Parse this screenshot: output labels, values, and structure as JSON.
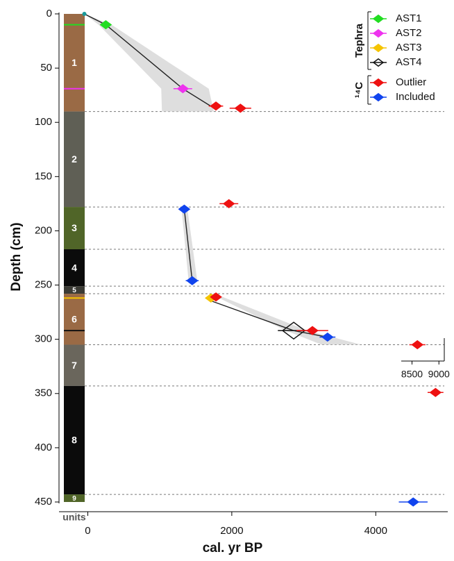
{
  "chart_data": {
    "type": "age-depth",
    "xlabel": "cal. yr BP",
    "ylabel": "Depth (cm)",
    "xlim": [
      -400,
      5000
    ],
    "ylim": [
      0,
      450
    ],
    "xticks": [
      0,
      2000,
      4000
    ],
    "yticks": [
      0,
      50,
      100,
      150,
      200,
      250,
      300,
      350,
      400,
      450
    ],
    "units": {
      "label": "units",
      "layers": [
        {
          "label": "1",
          "top": 0,
          "bottom": 90,
          "color": "#9a6a45"
        },
        {
          "label": "2",
          "top": 90,
          "bottom": 178,
          "color": "#5f5f55"
        },
        {
          "label": "3",
          "top": 178,
          "bottom": 217,
          "color": "#506528"
        },
        {
          "label": "4",
          "top": 217,
          "bottom": 251,
          "color": "#0b0b0b"
        },
        {
          "label": "5",
          "top": 251,
          "bottom": 258,
          "color": "#3b3b35"
        },
        {
          "label": "6",
          "top": 258,
          "bottom": 305,
          "color": "#9a6a45"
        },
        {
          "label": "7",
          "top": 305,
          "bottom": 343,
          "color": "#6a665c"
        },
        {
          "label": "8",
          "top": 343,
          "bottom": 443,
          "color": "#0b0b0b"
        },
        {
          "label": "9",
          "top": 443,
          "bottom": 450,
          "color": "#506528"
        }
      ]
    },
    "envelope": [
      {
        "depth": [
          0,
          10,
          69,
          90
        ],
        "lo": [
          -48,
          150,
          1020,
          1030
        ],
        "hi": [
          -48,
          330,
          1680,
          1750
        ]
      },
      {
        "depth": [
          178,
          246
        ],
        "lo": [
          1300,
          1400
        ],
        "hi": [
          1380,
          1520
        ]
      },
      {
        "depth": [
          258,
          292,
          305
        ],
        "lo": [
          1700,
          2750,
          3250
        ],
        "hi": [
          1760,
          3050,
          3800
        ]
      }
    ],
    "model": [
      {
        "x": [
          -48,
          250,
          1320,
          1780
        ],
        "y": [
          0,
          10,
          69,
          88
        ]
      },
      {
        "x": [
          1340,
          1450
        ],
        "y": [
          180,
          246
        ]
      },
      {
        "x": [
          1730,
          2860,
          3330
        ],
        "y": [
          265,
          292,
          298
        ]
      }
    ],
    "groups": [
      {
        "label": "Tephra",
        "series": [
          {
            "name": "AST1",
            "color": "#22dd22",
            "marker": "diamond",
            "x": [
              250
            ],
            "y": [
              10
            ],
            "xerr": [
              30
            ]
          },
          {
            "name": "AST2",
            "color": "#ee33ee",
            "marker": "diamond",
            "x": [
              1320
            ],
            "y": [
              69
            ],
            "xerr": [
              130
            ]
          },
          {
            "name": "AST3",
            "color": "#f5c400",
            "marker": "diamond",
            "x": [
              1710
            ],
            "y": [
              262
            ],
            "xerr": [
              50
            ]
          },
          {
            "name": "AST4",
            "color": "#111111",
            "marker": "open",
            "x": [
              2860
            ],
            "y": [
              292
            ],
            "xerr": [
              220
            ]
          }
        ]
      },
      {
        "label": "¹⁴C",
        "series": [
          {
            "name": "Outlier",
            "color": "#ee1111",
            "marker": "diamond",
            "x": [
              1780,
              2120,
              1960,
              1780,
              3120,
              4830
            ],
            "y": [
              85,
              87,
              175,
              261,
              292,
              349
            ],
            "xerr": [
              100,
              150,
              130,
              70,
              220,
              110
            ]
          },
          {
            "name": "Included",
            "color": "#1144ee",
            "marker": "diamond",
            "x": [
              1340,
              1450,
              3330,
              4520
            ],
            "y": [
              180,
              246,
              298,
              450
            ],
            "xerr": [
              70,
              90,
              110,
              200
            ]
          }
        ]
      }
    ],
    "inset": {
      "xlim": [
        8300,
        9100
      ],
      "xticks": [
        8500,
        9000
      ],
      "color": "#ee1111",
      "x": [
        8600
      ],
      "y": [
        305
      ],
      "xerr": [
        150
      ]
    }
  }
}
